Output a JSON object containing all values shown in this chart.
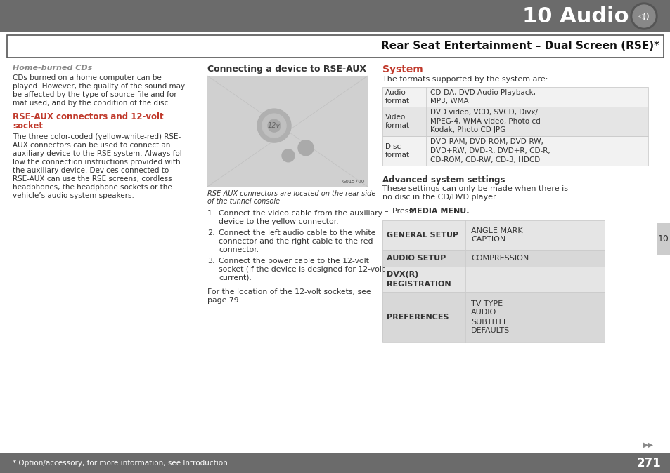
{
  "page_bg": "#ffffff",
  "header_bg": "#6b6b6b",
  "header_text": "10 Audio",
  "header_text_color": "#ffffff",
  "subheader_text": "Rear Seat Entertainment – Dual Screen (RSE)*",
  "tab_bg": "#cccccc",
  "tab_text": "10",
  "footer_bg": "#6b6b6b",
  "footer_text": "* Option/accessory, for more information, see Introduction.",
  "footer_page": "271",
  "col1_title": "Home-burned CDs",
  "col1_title_color": "#888888",
  "col1_body": "CDs burned on a home computer can be\nplayed. However, the quality of the sound may\nbe affected by the type of source file and for-\nmat used, and by the condition of the disc.",
  "col1_section2_title": "RSE-AUX connectors and 12-volt\nsocket",
  "col1_section2_title_color": "#c0392b",
  "col1_section2_body": "The three color-coded (yellow-white-red) RSE-\nAUX connectors can be used to connect an\nauxiliary device to the RSE system. Always fol-\nlow the connection instructions provided with\nthe auxiliary device. Devices connected to\nRSE-AUX can use the RSE screens, cordless\nheadphones, the headphone sockets or the\nvehicle’s audio system speakers.",
  "col2_title": "Connecting a device to RSE-AUX",
  "col2_caption": "RSE-AUX connectors are located on the rear side\nof the tunnel console",
  "col2_steps": [
    "Connect the video cable from the auxiliary\ndevice to the yellow connector.",
    "Connect the left audio cable to the white\nconnector and the right cable to the red\nconnector.",
    "Connect the power cable to the 12-volt\nsocket (if the device is designed for 12-volt\ncurrent)."
  ],
  "col2_footer": "For the location of the 12-volt sockets, see\npage 79.",
  "col3_title": "System",
  "col3_title_color": "#c0392b",
  "col3_intro": "The formats supported by the system are:",
  "formats_table": [
    {
      "left": "Audio\nformat",
      "right": "CD-DA, DVD Audio Playback,\nMP3, WMA",
      "bg": "#f2f2f2"
    },
    {
      "left": "Video\nformat",
      "right": "DVD video, VCD, SVCD, Divx/\nMPEG-4, WMA video, Photo cd\nKodak, Photo CD JPG",
      "bg": "#e5e5e5"
    },
    {
      "left": "Disc\nformat",
      "right": "DVD-RAM, DVD-ROM, DVD-RW,\nDVD+RW, DVD-R, DVD+R, CD-R,\nCD-ROM, CD-RW, CD-3, HDCD",
      "bg": "#f2f2f2"
    }
  ],
  "adv_title": "Advanced system settings",
  "adv_body": "These settings can only be made when there is\nno disc in the CD/DVD player.",
  "adv_step_prefix": "–",
  "adv_step_text": "Press ",
  "adv_step_bold": "MEDIA MENU.",
  "menu_table": [
    {
      "left": "GENERAL SETUP",
      "right": "ANGLE MARK\nCAPTION",
      "bg": "#e5e5e5"
    },
    {
      "left": "AUDIO SETUP",
      "right": "COMPRESSION",
      "bg": "#d8d8d8"
    },
    {
      "left": "DVX(R)\nREGISTRATION",
      "right": "",
      "bg": "#e5e5e5"
    },
    {
      "left": "PREFERENCES",
      "right": "TV TYPE\nAUDIO\nSUBTITLE\nDEFAULTS",
      "bg": "#d8d8d8"
    }
  ]
}
